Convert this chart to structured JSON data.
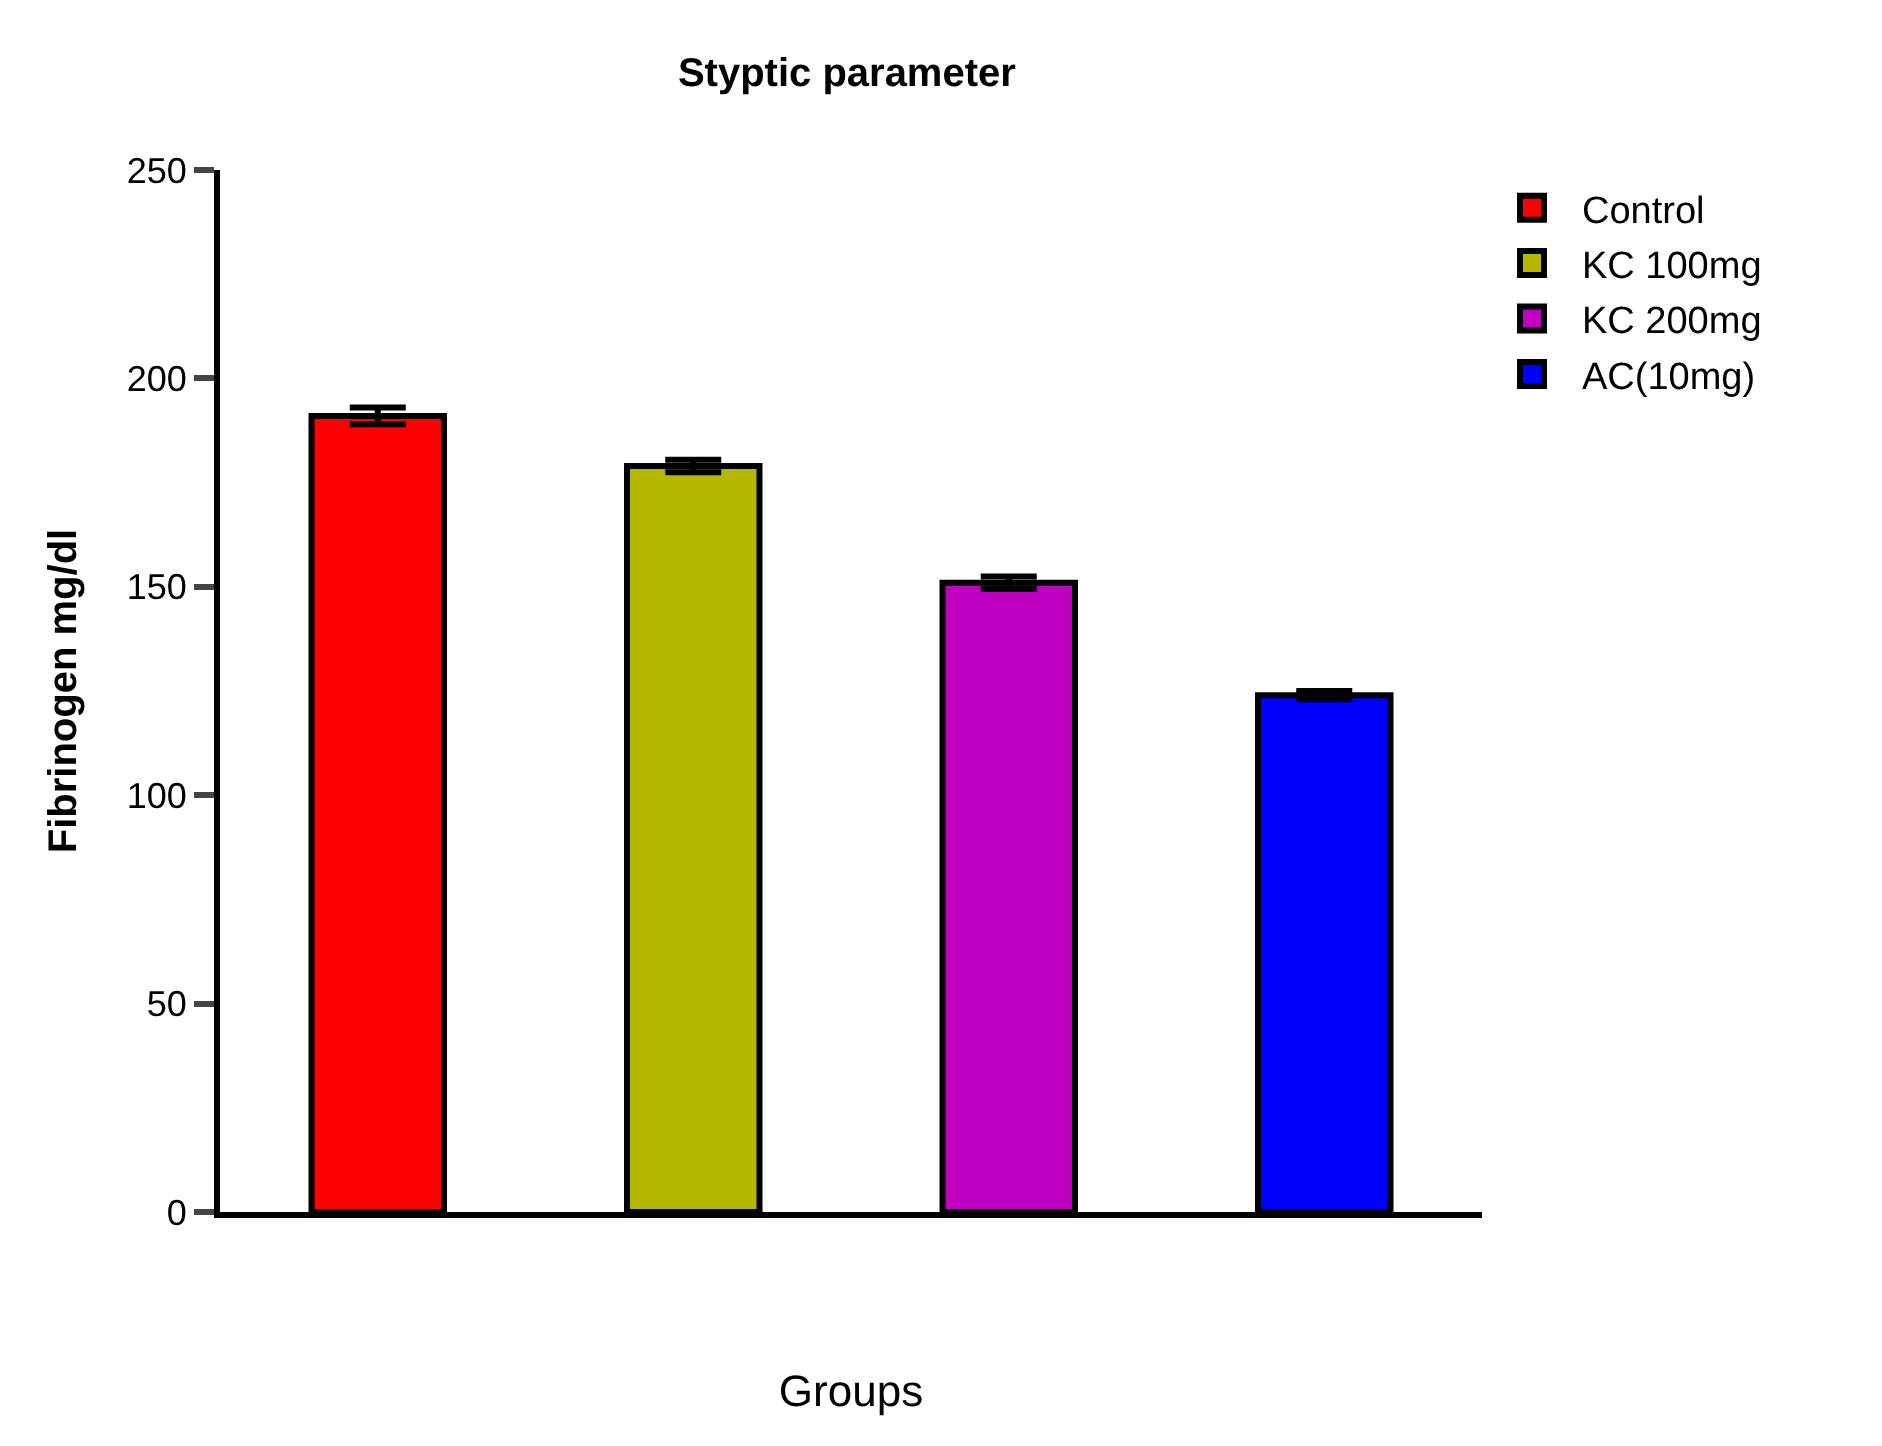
{
  "chart_data": {
    "type": "bar",
    "title": "Styptic parameter",
    "xlabel": "Groups",
    "ylabel": "Fibrinogen mg/dl",
    "categories": [
      null,
      null,
      null,
      null
    ],
    "series": [
      {
        "name": "Control",
        "color": "#ff0000",
        "values": [
          191,
          null,
          null,
          null
        ],
        "errors": [
          2,
          null,
          null,
          null
        ]
      },
      {
        "name": "KC 100mg",
        "color": "#b5b800",
        "values": [
          null,
          179,
          null,
          null
        ],
        "errors": [
          null,
          1.5,
          null,
          null
        ]
      },
      {
        "name": "KC 200mg",
        "color": "#c000c0",
        "values": [
          null,
          null,
          151,
          null
        ],
        "errors": [
          null,
          null,
          1.5,
          null
        ]
      },
      {
        "name": "AC(10mg)",
        "color": "#0000ff",
        "values": [
          null,
          null,
          null,
          124
        ],
        "errors": [
          null,
          null,
          null,
          1
        ]
      }
    ],
    "ylim": [
      0,
      250
    ],
    "yticks": [
      0,
      50,
      100,
      150,
      200,
      250
    ],
    "grid": false,
    "legend": "top right",
    "tick_labels": "y"
  }
}
